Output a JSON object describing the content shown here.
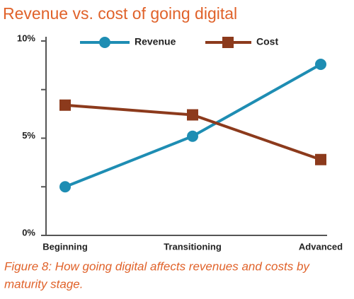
{
  "chart_data": {
    "type": "line",
    "title": "Revenue vs. cost of going digital",
    "caption": [
      "Figure 8: How going digital affects revenues and costs by",
      "maturity stage."
    ],
    "categories": [
      "Beginning",
      "Transitioning",
      "Advanced"
    ],
    "series": [
      {
        "name": "Revenue",
        "color": "#1e8db3",
        "marker": "circle",
        "values": [
          2.5,
          5.1,
          8.8
        ]
      },
      {
        "name": "Cost",
        "color": "#8c3a1c",
        "marker": "square",
        "values": [
          6.7,
          6.2,
          3.9
        ]
      }
    ],
    "ylim": [
      0,
      10
    ],
    "yticks": [
      {
        "value": 0,
        "label": "0%"
      },
      {
        "value": 5,
        "label": "5%"
      },
      {
        "value": 10,
        "label": "10%"
      }
    ],
    "yminorticks": [
      2.5,
      7.5
    ],
    "grid": false,
    "legend": "top"
  }
}
